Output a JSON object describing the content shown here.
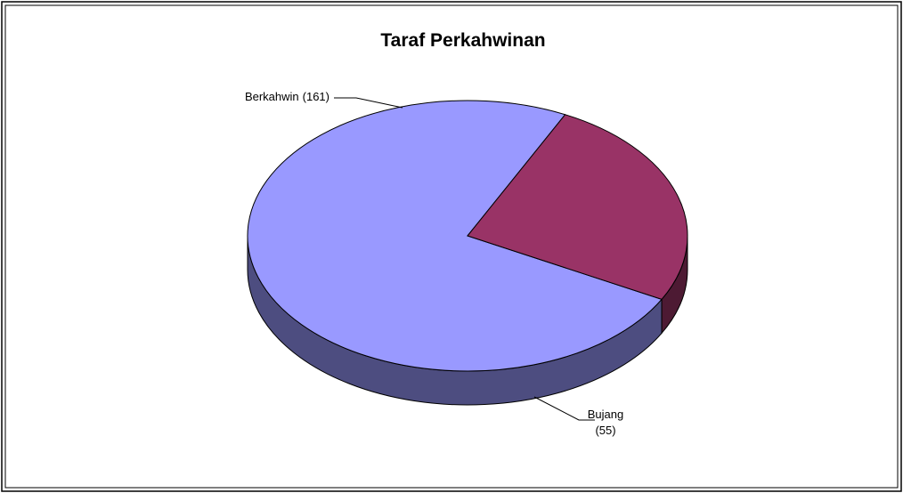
{
  "chart_data": {
    "type": "pie",
    "title": "Taraf Perkahwinan",
    "categories": [
      "Berkahwin",
      "Bujang"
    ],
    "values": [
      161,
      55
    ],
    "value_labels": [
      "(161)",
      "(55)"
    ],
    "colors": [
      "#9999ff",
      "#993366"
    ]
  }
}
